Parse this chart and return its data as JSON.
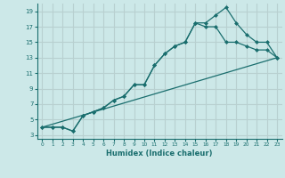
{
  "xlabel": "Humidex (Indice chaleur)",
  "ylabel": "",
  "background_color": "#cce8e8",
  "grid_color": "#b8d0d0",
  "line_color": "#1a6e6e",
  "xlim": [
    -0.5,
    23.5
  ],
  "ylim": [
    2.5,
    20
  ],
  "xticks": [
    0,
    1,
    2,
    3,
    4,
    5,
    6,
    7,
    8,
    9,
    10,
    11,
    12,
    13,
    14,
    15,
    16,
    17,
    18,
    19,
    20,
    21,
    22,
    23
  ],
  "yticks": [
    3,
    5,
    7,
    9,
    11,
    13,
    15,
    17,
    19
  ],
  "line1_x": [
    0,
    1,
    2,
    3,
    4,
    5,
    6,
    7,
    8,
    9,
    10,
    11,
    12,
    13,
    14,
    15,
    16,
    17,
    18,
    19,
    20,
    21,
    22,
    23
  ],
  "line1_y": [
    4,
    4,
    4,
    3.5,
    5.5,
    6,
    6.5,
    7.5,
    8,
    9.5,
    9.5,
    12,
    13.5,
    14.5,
    15,
    17.5,
    17.5,
    18.5,
    19.5,
    17.5,
    16,
    15,
    15,
    13
  ],
  "line2_x": [
    0,
    1,
    2,
    3,
    4,
    5,
    6,
    7,
    8,
    9,
    10,
    11,
    12,
    13,
    14,
    15,
    16,
    17,
    18,
    19,
    20,
    21,
    22,
    23
  ],
  "line2_y": [
    4,
    4,
    4,
    3.5,
    5.5,
    6,
    6.5,
    7.5,
    8,
    9.5,
    9.5,
    12,
    13.5,
    14.5,
    15,
    17.5,
    17,
    17,
    15,
    15,
    14.5,
    14,
    14,
    13
  ],
  "line3_x": [
    0,
    23
  ],
  "line3_y": [
    4,
    13
  ]
}
